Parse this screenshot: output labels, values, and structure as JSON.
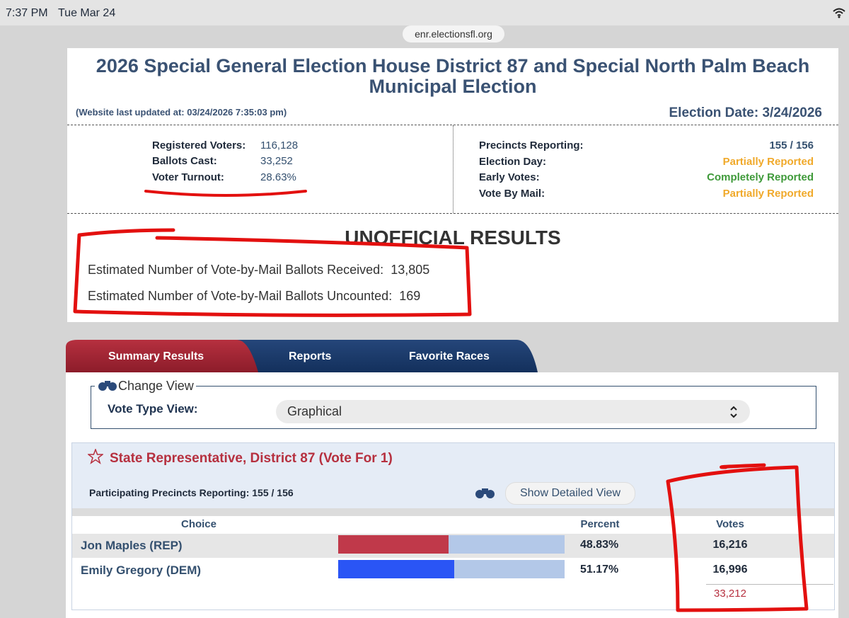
{
  "status_bar": {
    "time": "7:37 PM",
    "date": "Tue Mar 24",
    "url": "enr.electionsfl.org"
  },
  "header": {
    "title": "2026 Special General Election House District 87 and Special North Palm Beach Municipal Election",
    "last_updated": "(Website last updated at: 03/24/2026 7:35:03 pm)",
    "election_date": "Election Date: 3/24/2026"
  },
  "stats": {
    "left": [
      {
        "label": "Registered Voters:",
        "value": "116,128"
      },
      {
        "label": "Ballots Cast:",
        "value": "33,252"
      },
      {
        "label": "Voter Turnout:",
        "value": "28.63%"
      }
    ],
    "right": [
      {
        "label": "Precincts Reporting:",
        "value": "155 / 156",
        "color": "#34506f"
      },
      {
        "label": "Election Day:",
        "value": "Partially Reported",
        "color": "#f0a92a"
      },
      {
        "label": "Early Votes:",
        "value": "Completely Reported",
        "color": "#3f9a3a"
      },
      {
        "label": "Vote By Mail:",
        "value": "Partially Reported",
        "color": "#f0a92a"
      }
    ]
  },
  "unofficial": {
    "heading": "UNOFFICIAL RESULTS",
    "lines": [
      {
        "label": "Estimated Number of Vote-by-Mail Ballots Received:",
        "value": "13,805"
      },
      {
        "label": "Estimated Number of Vote-by-Mail Ballots Uncounted:",
        "value": "169"
      }
    ]
  },
  "tabs": [
    "Summary Results",
    "Reports",
    "Favorite Races"
  ],
  "change_view": {
    "legend": "Change View",
    "label": "Vote Type View:",
    "selected": "Graphical"
  },
  "race": {
    "title": "State Representative, District 87 (Vote For 1)",
    "precincts": "Participating Precincts Reporting: 155 / 156",
    "detail_button": "Show Detailed View",
    "columns": [
      "Choice",
      "Percent",
      "Votes"
    ],
    "rows": [
      {
        "choice": "Jon Maples (REP)",
        "color": "#c0394a",
        "percent": {
          "value": 48.83,
          "label": "48.83%"
        },
        "votes": "16,216"
      },
      {
        "choice": "Emily Gregory (DEM)",
        "color": "#2a55f5",
        "percent": {
          "value": 51.17,
          "label": "51.17%"
        },
        "votes": "16,996"
      }
    ],
    "total": "33,212"
  }
}
